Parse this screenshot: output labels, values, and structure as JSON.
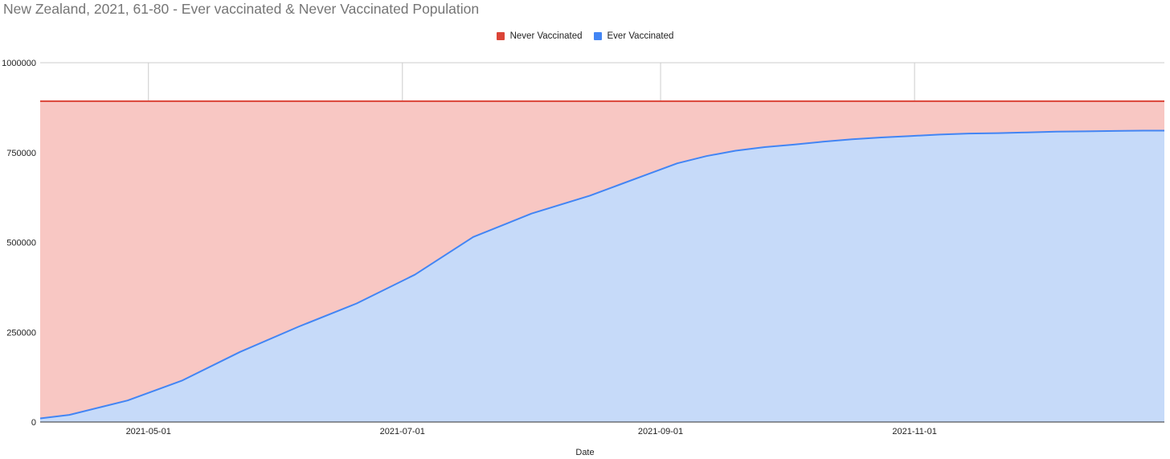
{
  "chart_data": {
    "type": "area",
    "title": "New Zealand, 2021, 61-80 - Ever vaccinated & Never Vaccinated Population",
    "xlabel": "Date",
    "ylabel": "",
    "ylim": [
      0,
      1000000
    ],
    "xlim": [
      "2021-04-05",
      "2021-12-31"
    ],
    "y_ticks": [
      "0",
      "250000",
      "500000",
      "750000",
      "1000000"
    ],
    "x_ticks": [
      "2021-05-01",
      "2021-07-01",
      "2021-09-01",
      "2021-11-01"
    ],
    "grid": true,
    "legend_position": "top",
    "stacked": true,
    "series": [
      {
        "name": "Never Vaccinated",
        "line_color": "#db4437",
        "fill_color": "#f8c7c3",
        "total": 893000
      },
      {
        "name": "Ever Vaccinated",
        "line_color": "#4285f4",
        "fill_color": "#c6daf9",
        "x": [
          "2021-04-05",
          "2021-04-12",
          "2021-04-26",
          "2021-05-09",
          "2021-05-23",
          "2021-06-06",
          "2021-06-20",
          "2021-07-04",
          "2021-07-18",
          "2021-08-01",
          "2021-08-15",
          "2021-08-22",
          "2021-08-29",
          "2021-09-05",
          "2021-09-12",
          "2021-09-19",
          "2021-09-26",
          "2021-10-03",
          "2021-10-10",
          "2021-10-17",
          "2021-10-24",
          "2021-10-31",
          "2021-11-07",
          "2021-11-14",
          "2021-11-21",
          "2021-11-28",
          "2021-12-05",
          "2021-12-12",
          "2021-12-19",
          "2021-12-26",
          "2021-12-31"
        ],
        "values": [
          10000,
          20000,
          60000,
          115000,
          195000,
          265000,
          330000,
          410000,
          515000,
          580000,
          630000,
          660000,
          690000,
          720000,
          740000,
          755000,
          765000,
          772000,
          780000,
          787000,
          792000,
          796000,
          800000,
          803000,
          804000,
          806000,
          808000,
          809000,
          810000,
          811000,
          811000
        ]
      }
    ]
  }
}
